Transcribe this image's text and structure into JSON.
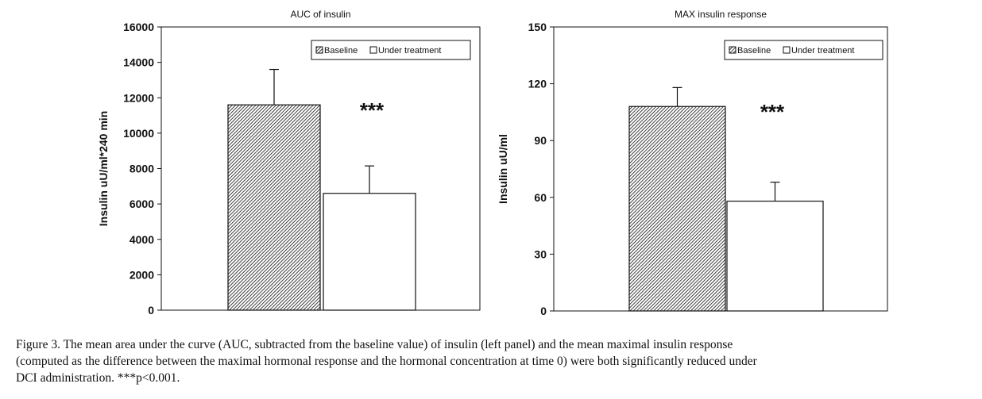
{
  "chart_data": [
    {
      "type": "bar",
      "title": "AUC of insulin",
      "ylabel": "Insulin uU/ml*240 min",
      "xlabel": "",
      "ylim": [
        0,
        16000
      ],
      "yticks": [
        0,
        2000,
        4000,
        6000,
        8000,
        10000,
        12000,
        14000,
        16000
      ],
      "categories": [
        "Baseline",
        "Under treatment"
      ],
      "series": [
        {
          "name": "Baseline",
          "value": 11600,
          "error": 2000,
          "pattern": "hatch"
        },
        {
          "name": "Under treatment",
          "value": 6600,
          "error": 1550,
          "pattern": "open"
        }
      ],
      "legend": [
        "Baseline",
        "Under treatment"
      ],
      "legend_position": "top-right",
      "annotation": "***",
      "grid": false
    },
    {
      "type": "bar",
      "title": "MAX insulin response",
      "ylabel": "Insulin uU/ml",
      "xlabel": "",
      "ylim": [
        0,
        150
      ],
      "yticks": [
        0,
        30,
        60,
        90,
        120,
        150
      ],
      "categories": [
        "Baseline",
        "Under treatment"
      ],
      "series": [
        {
          "name": "Baseline",
          "value": 108,
          "error": 10,
          "pattern": "hatch"
        },
        {
          "name": "Under treatment",
          "value": 58,
          "error": 10,
          "pattern": "open"
        }
      ],
      "legend": [
        "Baseline",
        "Under treatment"
      ],
      "legend_position": "top-right",
      "annotation": "***",
      "grid": false
    }
  ],
  "caption": {
    "lines": [
      "Figure 3. The mean area under the curve (AUC, subtracted from the baseline value) of insulin (left panel) and the mean maximal insulin response",
      "(computed as the difference between the maximal hormonal response and the hormonal concentration at time 0) were both significantly reduced under",
      "DCI administration. ***p<0.001."
    ]
  }
}
